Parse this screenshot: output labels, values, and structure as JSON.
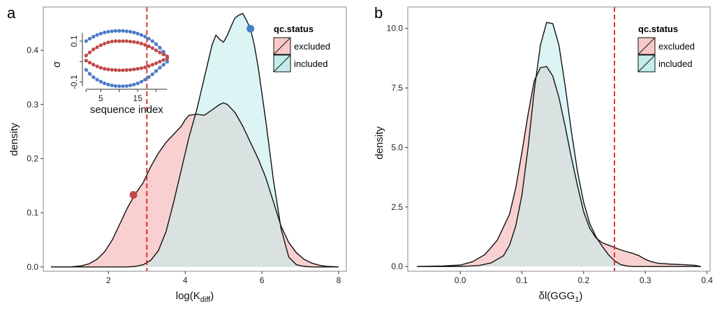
{
  "colors": {
    "excluded_fill": "#f8c8c8",
    "included_fill": "#c4ecec",
    "overlap_fill": "#c9ddd9",
    "threshold_line": "#e02020",
    "inset_red": "#c04848",
    "inset_blue": "#4a7cc8",
    "panel_bg": "#ffffff",
    "frame": "#888888"
  },
  "chart_data": [
    {
      "type": "area",
      "panel_label": "a",
      "xlabel_main": "log(K",
      "xlabel_sub": "diff",
      "xlabel_close": ")",
      "ylabel": "density",
      "xlim": [
        0.3,
        8.2
      ],
      "ylim": [
        -0.008,
        0.48
      ],
      "xticks": [
        2,
        4,
        6,
        8
      ],
      "xtick_labels": [
        "2",
        "4",
        "6",
        "8"
      ],
      "yticks": [
        0.0,
        0.1,
        0.2,
        0.3,
        0.4
      ],
      "ytick_labels": [
        "0.0",
        "0.1",
        "0.2",
        "0.3",
        "0.4"
      ],
      "threshold_x": 3.0,
      "legend": {
        "title": "qc.status",
        "position": "top-right",
        "entries": [
          "excluded",
          "included"
        ]
      },
      "series": [
        {
          "name": "excluded",
          "x": [
            0.5,
            1.0,
            1.3,
            1.5,
            1.7,
            1.9,
            2.1,
            2.3,
            2.5,
            2.7,
            2.9,
            3.1,
            3.3,
            3.5,
            3.7,
            3.9,
            4.0,
            4.1,
            4.3,
            4.5,
            4.7,
            4.9,
            5.0,
            5.1,
            5.3,
            5.5,
            5.7,
            5.9,
            6.1,
            6.3,
            6.5,
            6.7,
            6.9,
            7.1,
            7.3,
            7.5,
            7.7,
            8.0
          ],
          "y": [
            0.0,
            0.0,
            0.002,
            0.006,
            0.014,
            0.028,
            0.05,
            0.08,
            0.11,
            0.135,
            0.155,
            0.185,
            0.21,
            0.23,
            0.245,
            0.26,
            0.272,
            0.28,
            0.282,
            0.28,
            0.29,
            0.3,
            0.303,
            0.3,
            0.285,
            0.26,
            0.23,
            0.2,
            0.165,
            0.12,
            0.075,
            0.045,
            0.026,
            0.014,
            0.007,
            0.003,
            0.001,
            0.0
          ]
        },
        {
          "name": "included",
          "x": [
            0.5,
            2.5,
            2.7,
            2.9,
            3.1,
            3.3,
            3.5,
            3.7,
            3.9,
            4.1,
            4.3,
            4.5,
            4.7,
            4.8,
            4.9,
            5.0,
            5.1,
            5.2,
            5.3,
            5.4,
            5.5,
            5.6,
            5.7,
            5.8,
            5.9,
            6.1,
            6.3,
            6.5,
            6.7,
            6.9,
            7.1,
            7.3,
            8.0
          ],
          "y": [
            0.0,
            0.0,
            0.001,
            0.004,
            0.012,
            0.03,
            0.065,
            0.12,
            0.18,
            0.24,
            0.29,
            0.35,
            0.41,
            0.428,
            0.42,
            0.415,
            0.428,
            0.445,
            0.46,
            0.465,
            0.468,
            0.455,
            0.44,
            0.41,
            0.37,
            0.27,
            0.16,
            0.07,
            0.018,
            0.004,
            0.001,
            0.0,
            0.0
          ]
        }
      ],
      "markers": [
        {
          "series": "excluded",
          "x": 2.65,
          "y": 0.133
        },
        {
          "series": "included",
          "x": 5.7,
          "y": 0.44
        }
      ],
      "inset": {
        "type": "scatter",
        "xlabel": "sequence index",
        "ylabel": "σ",
        "xlim": [
          0,
          25
        ],
        "ylim": [
          -0.135,
          0.185
        ],
        "xticks": [
          5,
          15
        ],
        "xtick_labels": [
          "5",
          "15"
        ],
        "yticks": [
          -0.1,
          0.1
        ],
        "ytick_labels": [
          "-0.1",
          "0.1"
        ],
        "x": [
          1,
          2,
          3,
          4,
          5,
          6,
          7,
          8,
          9,
          10,
          11,
          12,
          13,
          14,
          15,
          16,
          17,
          18,
          19,
          20,
          21,
          22,
          23
        ],
        "series": [
          {
            "name": "blue_upper",
            "values": [
              0.1,
              0.112,
              0.122,
              0.13,
              0.137,
              0.142,
              0.146,
              0.148,
              0.15,
              0.15,
              0.15,
              0.148,
              0.146,
              0.142,
              0.137,
              0.13,
              0.122,
              0.112,
              0.1,
              0.085,
              0.068,
              0.048,
              0.025
            ]
          },
          {
            "name": "red_upper",
            "values": [
              0.03,
              0.045,
              0.06,
              0.07,
              0.08,
              0.088,
              0.094,
              0.098,
              0.1,
              0.1,
              0.1,
              0.1,
              0.098,
              0.096,
              0.093,
              0.088,
              0.082,
              0.075,
              0.066,
              0.055,
              0.045,
              0.035,
              0.025
            ]
          },
          {
            "name": "red_lower",
            "values": [
              0.005,
              -0.005,
              -0.015,
              -0.023,
              -0.03,
              -0.035,
              -0.038,
              -0.04,
              -0.041,
              -0.042,
              -0.042,
              -0.041,
              -0.04,
              -0.038,
              -0.035,
              -0.032,
              -0.028,
              -0.022,
              -0.015,
              -0.008,
              0.0,
              0.008,
              0.015
            ]
          },
          {
            "name": "blue_lower",
            "values": [
              -0.04,
              -0.06,
              -0.076,
              -0.088,
              -0.098,
              -0.106,
              -0.112,
              -0.116,
              -0.119,
              -0.12,
              -0.12,
              -0.119,
              -0.116,
              -0.112,
              -0.106,
              -0.098,
              -0.088,
              -0.076,
              -0.062,
              -0.046,
              -0.03,
              -0.015,
              0.0
            ]
          }
        ]
      }
    },
    {
      "type": "area",
      "panel_label": "b",
      "xlabel_main": "δl(GGG",
      "xlabel_sub": "1",
      "xlabel_close": ")",
      "ylabel": "density",
      "xlim": [
        -0.085,
        0.405
      ],
      "ylim": [
        -0.2,
        10.9
      ],
      "xticks": [
        0.0,
        0.1,
        0.2,
        0.3,
        0.4
      ],
      "xtick_labels": [
        "0.0",
        "0.1",
        "0.2",
        "0.3",
        "0.4"
      ],
      "yticks": [
        0.0,
        2.5,
        5.0,
        7.5,
        10.0
      ],
      "ytick_labels": [
        "0.0",
        "2.5",
        "5.0",
        "7.5",
        "10.0"
      ],
      "threshold_x": 0.25,
      "legend": {
        "title": "qc.status",
        "position": "top-right",
        "entries": [
          "excluded",
          "included"
        ]
      },
      "series": [
        {
          "name": "excluded",
          "x": [
            -0.07,
            -0.03,
            0.0,
            0.02,
            0.04,
            0.06,
            0.08,
            0.09,
            0.1,
            0.11,
            0.12,
            0.13,
            0.14,
            0.15,
            0.16,
            0.17,
            0.18,
            0.19,
            0.2,
            0.21,
            0.22,
            0.23,
            0.24,
            0.25,
            0.26,
            0.27,
            0.28,
            0.29,
            0.3,
            0.31,
            0.32,
            0.34,
            0.36,
            0.38,
            0.39
          ],
          "y": [
            0.0,
            0.02,
            0.06,
            0.2,
            0.5,
            1.1,
            2.2,
            3.3,
            4.8,
            6.4,
            7.8,
            8.35,
            8.4,
            8.0,
            7.1,
            5.9,
            4.6,
            3.4,
            2.3,
            1.6,
            1.2,
            1.0,
            0.9,
            0.8,
            0.7,
            0.62,
            0.55,
            0.45,
            0.3,
            0.2,
            0.14,
            0.1,
            0.08,
            0.05,
            0.0
          ]
        },
        {
          "name": "included",
          "x": [
            -0.07,
            0.0,
            0.03,
            0.05,
            0.07,
            0.08,
            0.09,
            0.1,
            0.11,
            0.12,
            0.13,
            0.14,
            0.15,
            0.16,
            0.17,
            0.18,
            0.19,
            0.2,
            0.21,
            0.22,
            0.23,
            0.24,
            0.25,
            0.26,
            0.27,
            0.28,
            0.3,
            0.39
          ],
          "y": [
            0.0,
            0.0,
            0.04,
            0.15,
            0.45,
            0.9,
            1.7,
            3.0,
            5.0,
            7.4,
            9.3,
            10.25,
            10.2,
            9.3,
            7.6,
            5.7,
            4.0,
            2.7,
            1.8,
            1.25,
            0.85,
            0.5,
            0.24,
            0.08,
            0.02,
            0.0,
            0.0,
            0.0
          ]
        }
      ]
    }
  ]
}
